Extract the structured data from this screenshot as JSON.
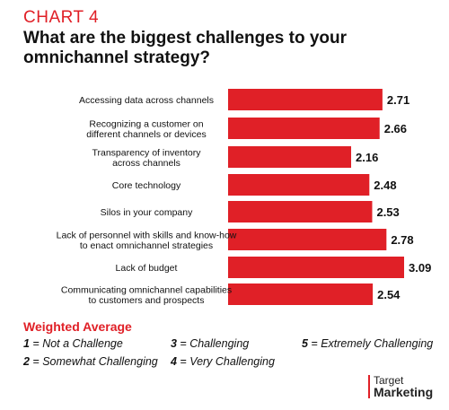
{
  "header": {
    "chart_label": "CHART 4",
    "title": "What are the biggest challenges to your omnichannel strategy?"
  },
  "legend": {
    "title": "Weighted Average",
    "items": [
      {
        "key": "1",
        "text": " = Not a Challenge"
      },
      {
        "key": "3",
        "text": " = Challenging"
      },
      {
        "key": "5",
        "text": " = Extremely Challenging"
      },
      {
        "key": "2",
        "text": " = Somewhat Challenging"
      },
      {
        "key": "4",
        "text": " = Very Challenging"
      }
    ]
  },
  "brand": {
    "top": "Target",
    "bottom": "Marketing"
  },
  "colors": {
    "accent": "#e02027",
    "bar": "#e02027",
    "text": "#111111"
  },
  "chart_data": {
    "type": "bar",
    "orientation": "horizontal",
    "categories": [
      [
        "Accessing data across channels"
      ],
      [
        "Recognizing a customer on",
        "different channels or devices"
      ],
      [
        "Transparency of inventory",
        "across channels"
      ],
      [
        "Core technology"
      ],
      [
        "Silos in your company"
      ],
      [
        "Lack of personnel with skills and know-how",
        "to enact omnichannel strategies"
      ],
      [
        "Lack of budget"
      ],
      [
        "Communicating omnichannel capabilities",
        "to customers and prospects"
      ]
    ],
    "values": [
      2.71,
      2.66,
      2.16,
      2.48,
      2.53,
      2.78,
      3.09,
      2.54
    ],
    "value_labels": [
      "2.71",
      "2.66",
      "2.16",
      "2.48",
      "2.53",
      "2.78",
      "3.09",
      "2.54"
    ],
    "xlim": [
      0,
      3.09
    ],
    "grid": false,
    "axis_visible": false
  }
}
